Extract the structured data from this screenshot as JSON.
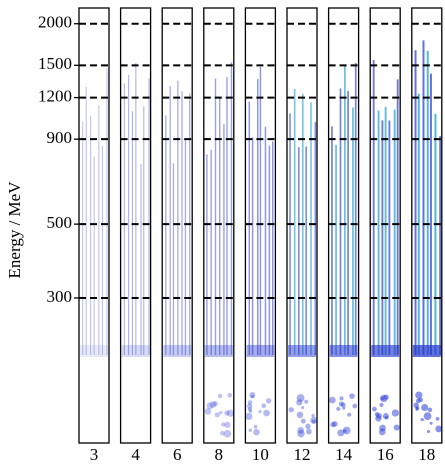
{
  "chart_data": {
    "type": "spectra",
    "ylabel": "Energy / MeV",
    "categories": [
      "3",
      "4",
      "6",
      "8",
      "10",
      "12",
      "14",
      "16",
      "18"
    ],
    "ylim": [
      110,
      2230
    ],
    "log_y": true,
    "yticks": [
      300,
      500,
      900,
      1200,
      1500,
      2000
    ],
    "reference_lines": true
  }
}
